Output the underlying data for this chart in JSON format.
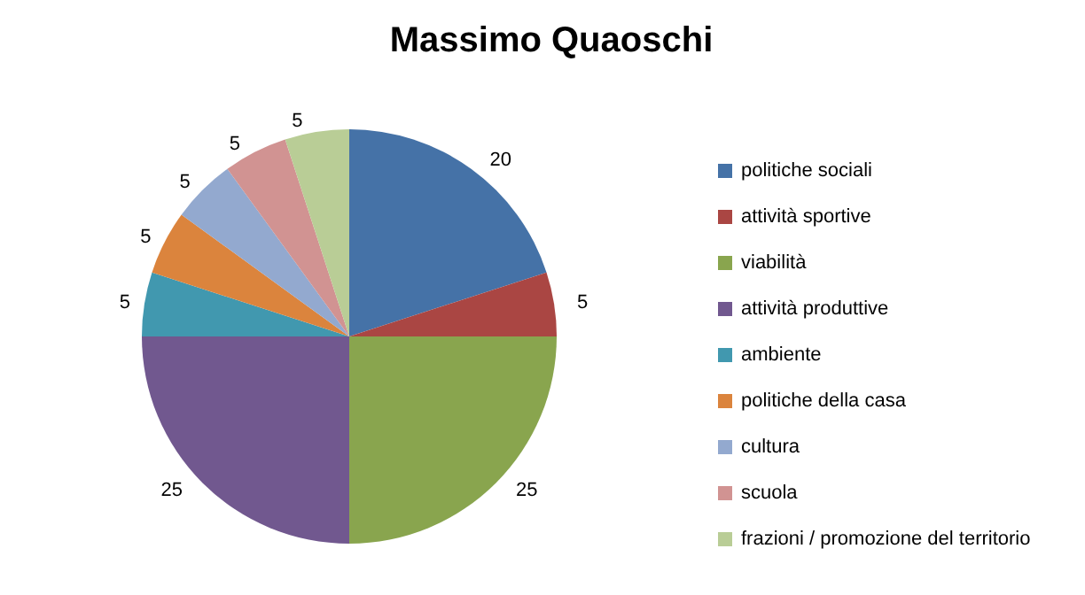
{
  "chart_data": {
    "type": "pie",
    "title": "Massimo Quaoschi",
    "categories": [
      "politiche sociali",
      "attività sportive",
      "viabilità",
      "attività produttive",
      "ambiente",
      "politiche della casa",
      "cultura",
      "scuola",
      "frazioni / promozione del territorio"
    ],
    "values": [
      20,
      5,
      25,
      25,
      5,
      5,
      5,
      5,
      5
    ],
    "colors": [
      "#4572a7",
      "#aa4643",
      "#89a54e",
      "#71588f",
      "#4198af",
      "#db843d",
      "#93a9cf",
      "#d19392",
      "#b9cd96"
    ],
    "data_labels": true,
    "legend": "right"
  }
}
